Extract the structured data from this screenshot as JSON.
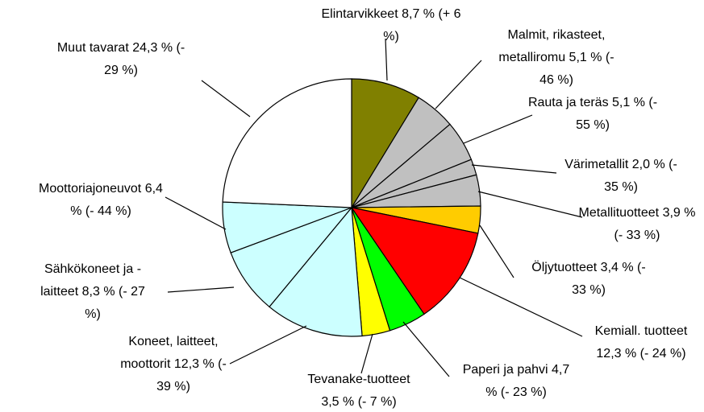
{
  "chart_data": {
    "type": "pie",
    "categories": [
      "Elintarvikkeet",
      "Malmit, rikasteet, metalliromu",
      "Rauta ja teräs",
      "Värimetallit",
      "Metallituotteet",
      "Öljytuotteet",
      "Kemiall. tuotteet",
      "Paperi ja pahvi",
      "Tevanake-tuotteet",
      "Koneet, laitteet, moottorit",
      "Sähkökoneet ja - laitteet",
      "Moottoriajoneuvot",
      "Muut tavarat"
    ],
    "values": [
      8.7,
      5.1,
      5.1,
      2.0,
      3.9,
      3.4,
      12.3,
      4.7,
      3.5,
      12.3,
      8.3,
      6.4,
      24.3
    ],
    "value_labels": [
      "8,7 %",
      "5,1 %",
      "5,1 %",
      "2,0 %",
      "3,9 %",
      "3,4 %",
      "12,3 %",
      "4,7 %",
      "3,5 %",
      "12,3 %",
      "8,3 %",
      "6,4 %",
      "24,3 %"
    ],
    "changes": [
      "(+ 6 %)",
      "(- 46 %)",
      "(- 55 %)",
      "(- 35 %)",
      "(- 33 %)",
      "(- 33 %)",
      "(- 24 %)",
      "(- 23 %)",
      "(- 7 %)",
      "(- 39 %)",
      "(- 27 %)",
      "(- 44 %)",
      "(- 29 %)"
    ],
    "colors": [
      "#808000",
      "#c0c0c0",
      "#c0c0c0",
      "#c0c0c0",
      "#c0c0c0",
      "#ffcc00",
      "#ff0000",
      "#00ff00",
      "#ffff00",
      "#ccffff",
      "#ccffff",
      "#ccffff",
      "#ffffff"
    ]
  }
}
